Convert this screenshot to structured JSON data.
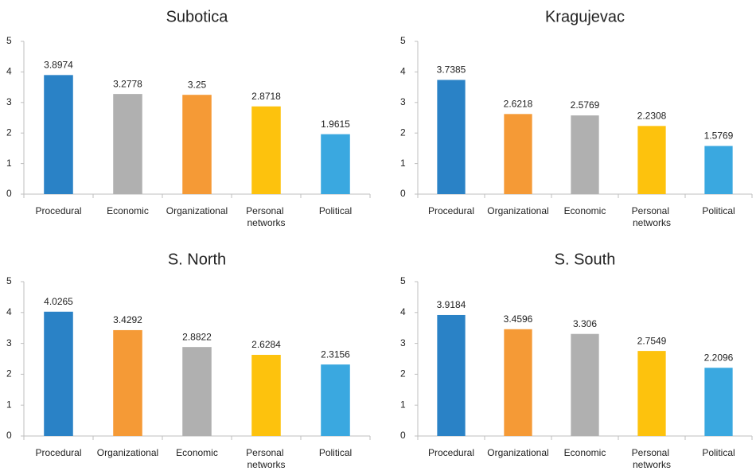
{
  "chart_data": [
    {
      "type": "bar",
      "title": "Subotica",
      "categories": [
        "Procedural",
        "Economic",
        "Organizational",
        "Personal networks",
        "Political"
      ],
      "values": [
        3.8974,
        3.2778,
        3.25,
        2.8718,
        1.9615
      ],
      "colors": [
        "#2a82c6",
        "#b0b0b0",
        "#f59a36",
        "#fdc20d",
        "#3aa8e0"
      ],
      "ylim": [
        0,
        5
      ],
      "yticks": [
        0,
        1,
        2,
        3,
        4,
        5
      ],
      "grid": false
    },
    {
      "type": "bar",
      "title": "Kragujevac",
      "categories": [
        "Procedural",
        "Organizational",
        "Economic",
        "Personal networks",
        "Political"
      ],
      "values": [
        3.7385,
        2.6218,
        2.5769,
        2.2308,
        1.5769
      ],
      "colors": [
        "#2a82c6",
        "#f59a36",
        "#b0b0b0",
        "#fdc20d",
        "#3aa8e0"
      ],
      "ylim": [
        0,
        5
      ],
      "yticks": [
        0,
        1,
        2,
        3,
        4,
        5
      ],
      "grid": false
    },
    {
      "type": "bar",
      "title": "S. North",
      "categories": [
        "Procedural",
        "Organizational",
        "Economic",
        "Personal networks",
        "Political"
      ],
      "values": [
        4.0265,
        3.4292,
        2.8822,
        2.6284,
        2.3156
      ],
      "colors": [
        "#2a82c6",
        "#f59a36",
        "#b0b0b0",
        "#fdc20d",
        "#3aa8e0"
      ],
      "ylim": [
        0,
        5
      ],
      "yticks": [
        0,
        1,
        2,
        3,
        4,
        5
      ],
      "grid": false
    },
    {
      "type": "bar",
      "title": "S. South",
      "categories": [
        "Procedural",
        "Organizational",
        "Economic",
        "Personal networks",
        "Political"
      ],
      "values": [
        3.9184,
        3.4596,
        3.306,
        2.7549,
        2.2096
      ],
      "colors": [
        "#2a82c6",
        "#f59a36",
        "#b0b0b0",
        "#fdc20d",
        "#3aa8e0"
      ],
      "ylim": [
        0,
        5
      ],
      "yticks": [
        0,
        1,
        2,
        3,
        4,
        5
      ],
      "grid": false
    }
  ]
}
